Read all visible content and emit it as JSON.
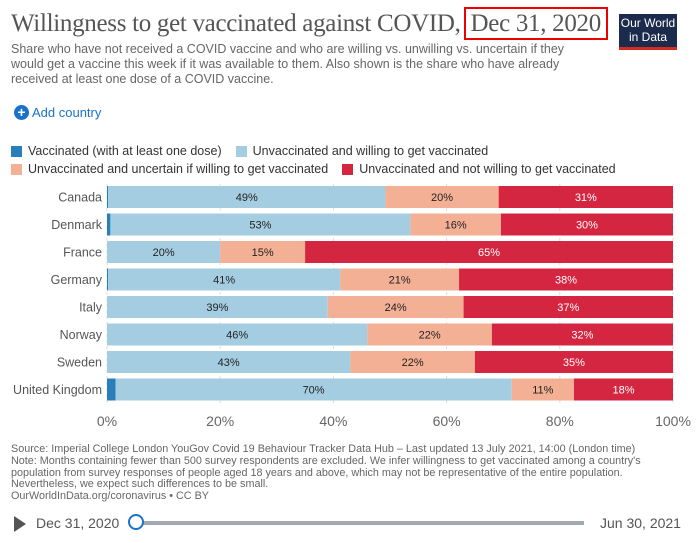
{
  "header": {
    "title": "Willingness to get vaccinated against COVID,",
    "date": "Dec 31, 2020",
    "subtitle": "Share who have not received a COVID vaccine and who are willing vs. unwilling vs. uncertain if they would get a vaccine this week if it was available to them. Also shown is the share who have already received at least one dose of a COVID vaccine.",
    "logo": "Our World in Data"
  },
  "controls": {
    "add_country": "Add country"
  },
  "colors": {
    "vaccinated": "#2a7fba",
    "willing": "#a5cde2",
    "uncertain": "#f3b094",
    "unwilling": "#d42640",
    "logo_bg": "#1a2b4c",
    "accent": "#1a73c9"
  },
  "chart_data": {
    "type": "bar",
    "orientation": "horizontal",
    "stacked": true,
    "categories": [
      "Canada",
      "Denmark",
      "France",
      "Germany",
      "Italy",
      "Norway",
      "Sweden",
      "United Kingdom"
    ],
    "series": [
      {
        "name": "Vaccinated (with at least one dose)",
        "values": [
          0.2,
          0.6,
          0,
          0.2,
          0,
          0,
          0,
          1.5
        ]
      },
      {
        "name": "Unvaccinated and willing to get vaccinated",
        "values": [
          49,
          53,
          20,
          41,
          39,
          46,
          43,
          70
        ]
      },
      {
        "name": "Unvaccinated and uncertain if willing to get vaccinated",
        "values": [
          20,
          16,
          15,
          21,
          24,
          22,
          22,
          11
        ]
      },
      {
        "name": "Unvaccinated and not willing to get vaccinated",
        "values": [
          31,
          30,
          65,
          38,
          37,
          32,
          35,
          18
        ]
      }
    ],
    "xlim": [
      0,
      100
    ],
    "xticks": [
      "0%",
      "20%",
      "40%",
      "60%",
      "80%",
      "100%"
    ],
    "grid": true,
    "legend": "top"
  },
  "footer": {
    "source": "Source: Imperial College London YouGov Covid 19 Behaviour Tracker Data Hub – Last updated 13 July 2021, 14:00 (London time)",
    "note": "Note: Months containing fewer than 500 survey respondents are excluded. We infer willingness to get vaccinated among a country's population from survey responses of people aged 18 years and above, which may not be representative of the entire population. Nevertheless, we expect such differences to be small.",
    "license": "OurWorldInData.org/coronavirus • CC BY"
  },
  "timeline": {
    "start": "Dec 31, 2020",
    "end": "Jun 30, 2021",
    "position": 0
  }
}
